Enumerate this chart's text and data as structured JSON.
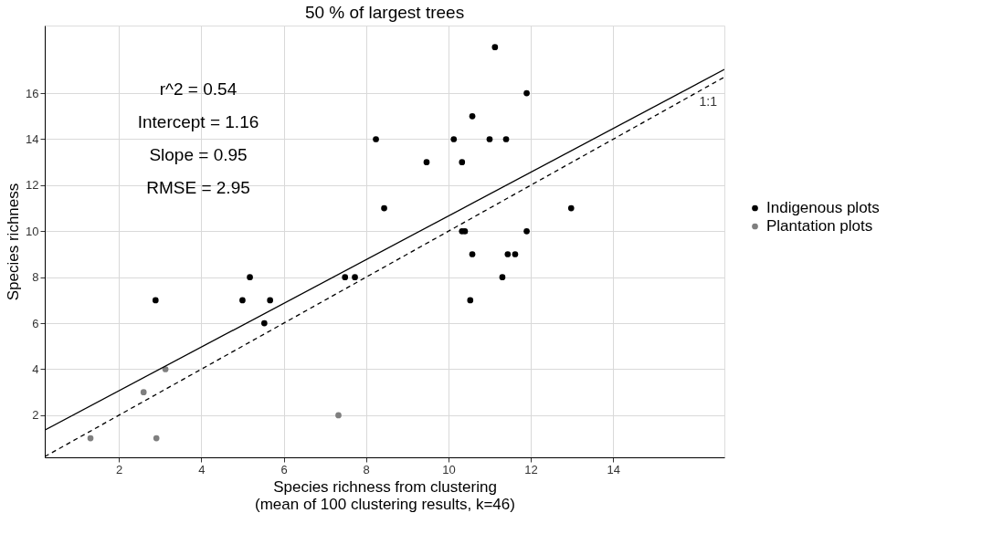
{
  "chart_data": {
    "type": "scatter",
    "title": "50 % of largest trees",
    "xlabel": "Species richness from clustering\n(mean of 100 clustering results, k=46)",
    "ylabel": "Species richness",
    "annotations": [
      "r^2 = 0.54",
      "Intercept = 1.16",
      "Slope = 0.95",
      "RMSE = 2.95"
    ],
    "series": [
      {
        "name": "Indigenous plots",
        "color": "#000000",
        "x": [
          2.89,
          5.0,
          5.18,
          5.53,
          5.67,
          7.49,
          7.73,
          8.24,
          8.44,
          9.47,
          10.13,
          10.33,
          10.33,
          10.4,
          10.58,
          10.58,
          10.53,
          11.0,
          11.13,
          11.31,
          11.4,
          11.44,
          11.62,
          11.9,
          11.9,
          12.98
        ],
        "values": [
          7,
          7,
          8,
          6,
          7,
          8,
          8,
          14,
          11,
          13,
          14,
          13,
          10,
          10,
          15,
          9,
          7,
          14,
          18,
          8,
          14,
          9,
          9,
          16,
          10,
          11
        ]
      },
      {
        "name": "Plantation plots",
        "color": "#7f7f7f",
        "x": [
          1.31,
          2.91,
          2.6,
          3.13,
          7.33
        ],
        "values": [
          1,
          1,
          3,
          4,
          2
        ]
      },
      {
        "type": "line",
        "color": "#000000",
        "line_style": "solid",
        "marker": "none",
        "x": [
          0.2,
          16.7
        ],
        "values": [
          1.35,
          17.03
        ]
      },
      {
        "type": "line",
        "name": "1:1",
        "color": "#000000",
        "line_style": "dashed",
        "marker": "none",
        "x": [
          0.2,
          16.7
        ],
        "values": [
          0.2,
          16.7
        ]
      }
    ],
    "xlim": [
      0.2,
      16.7
    ],
    "ylim": [
      0.17,
      18.94
    ],
    "xticks": [
      2,
      4,
      6,
      8,
      10,
      12,
      14
    ],
    "yticks": [
      2,
      4,
      6,
      8,
      10,
      12,
      14,
      16
    ],
    "grid": true,
    "legend": "right",
    "marker": "circle"
  }
}
